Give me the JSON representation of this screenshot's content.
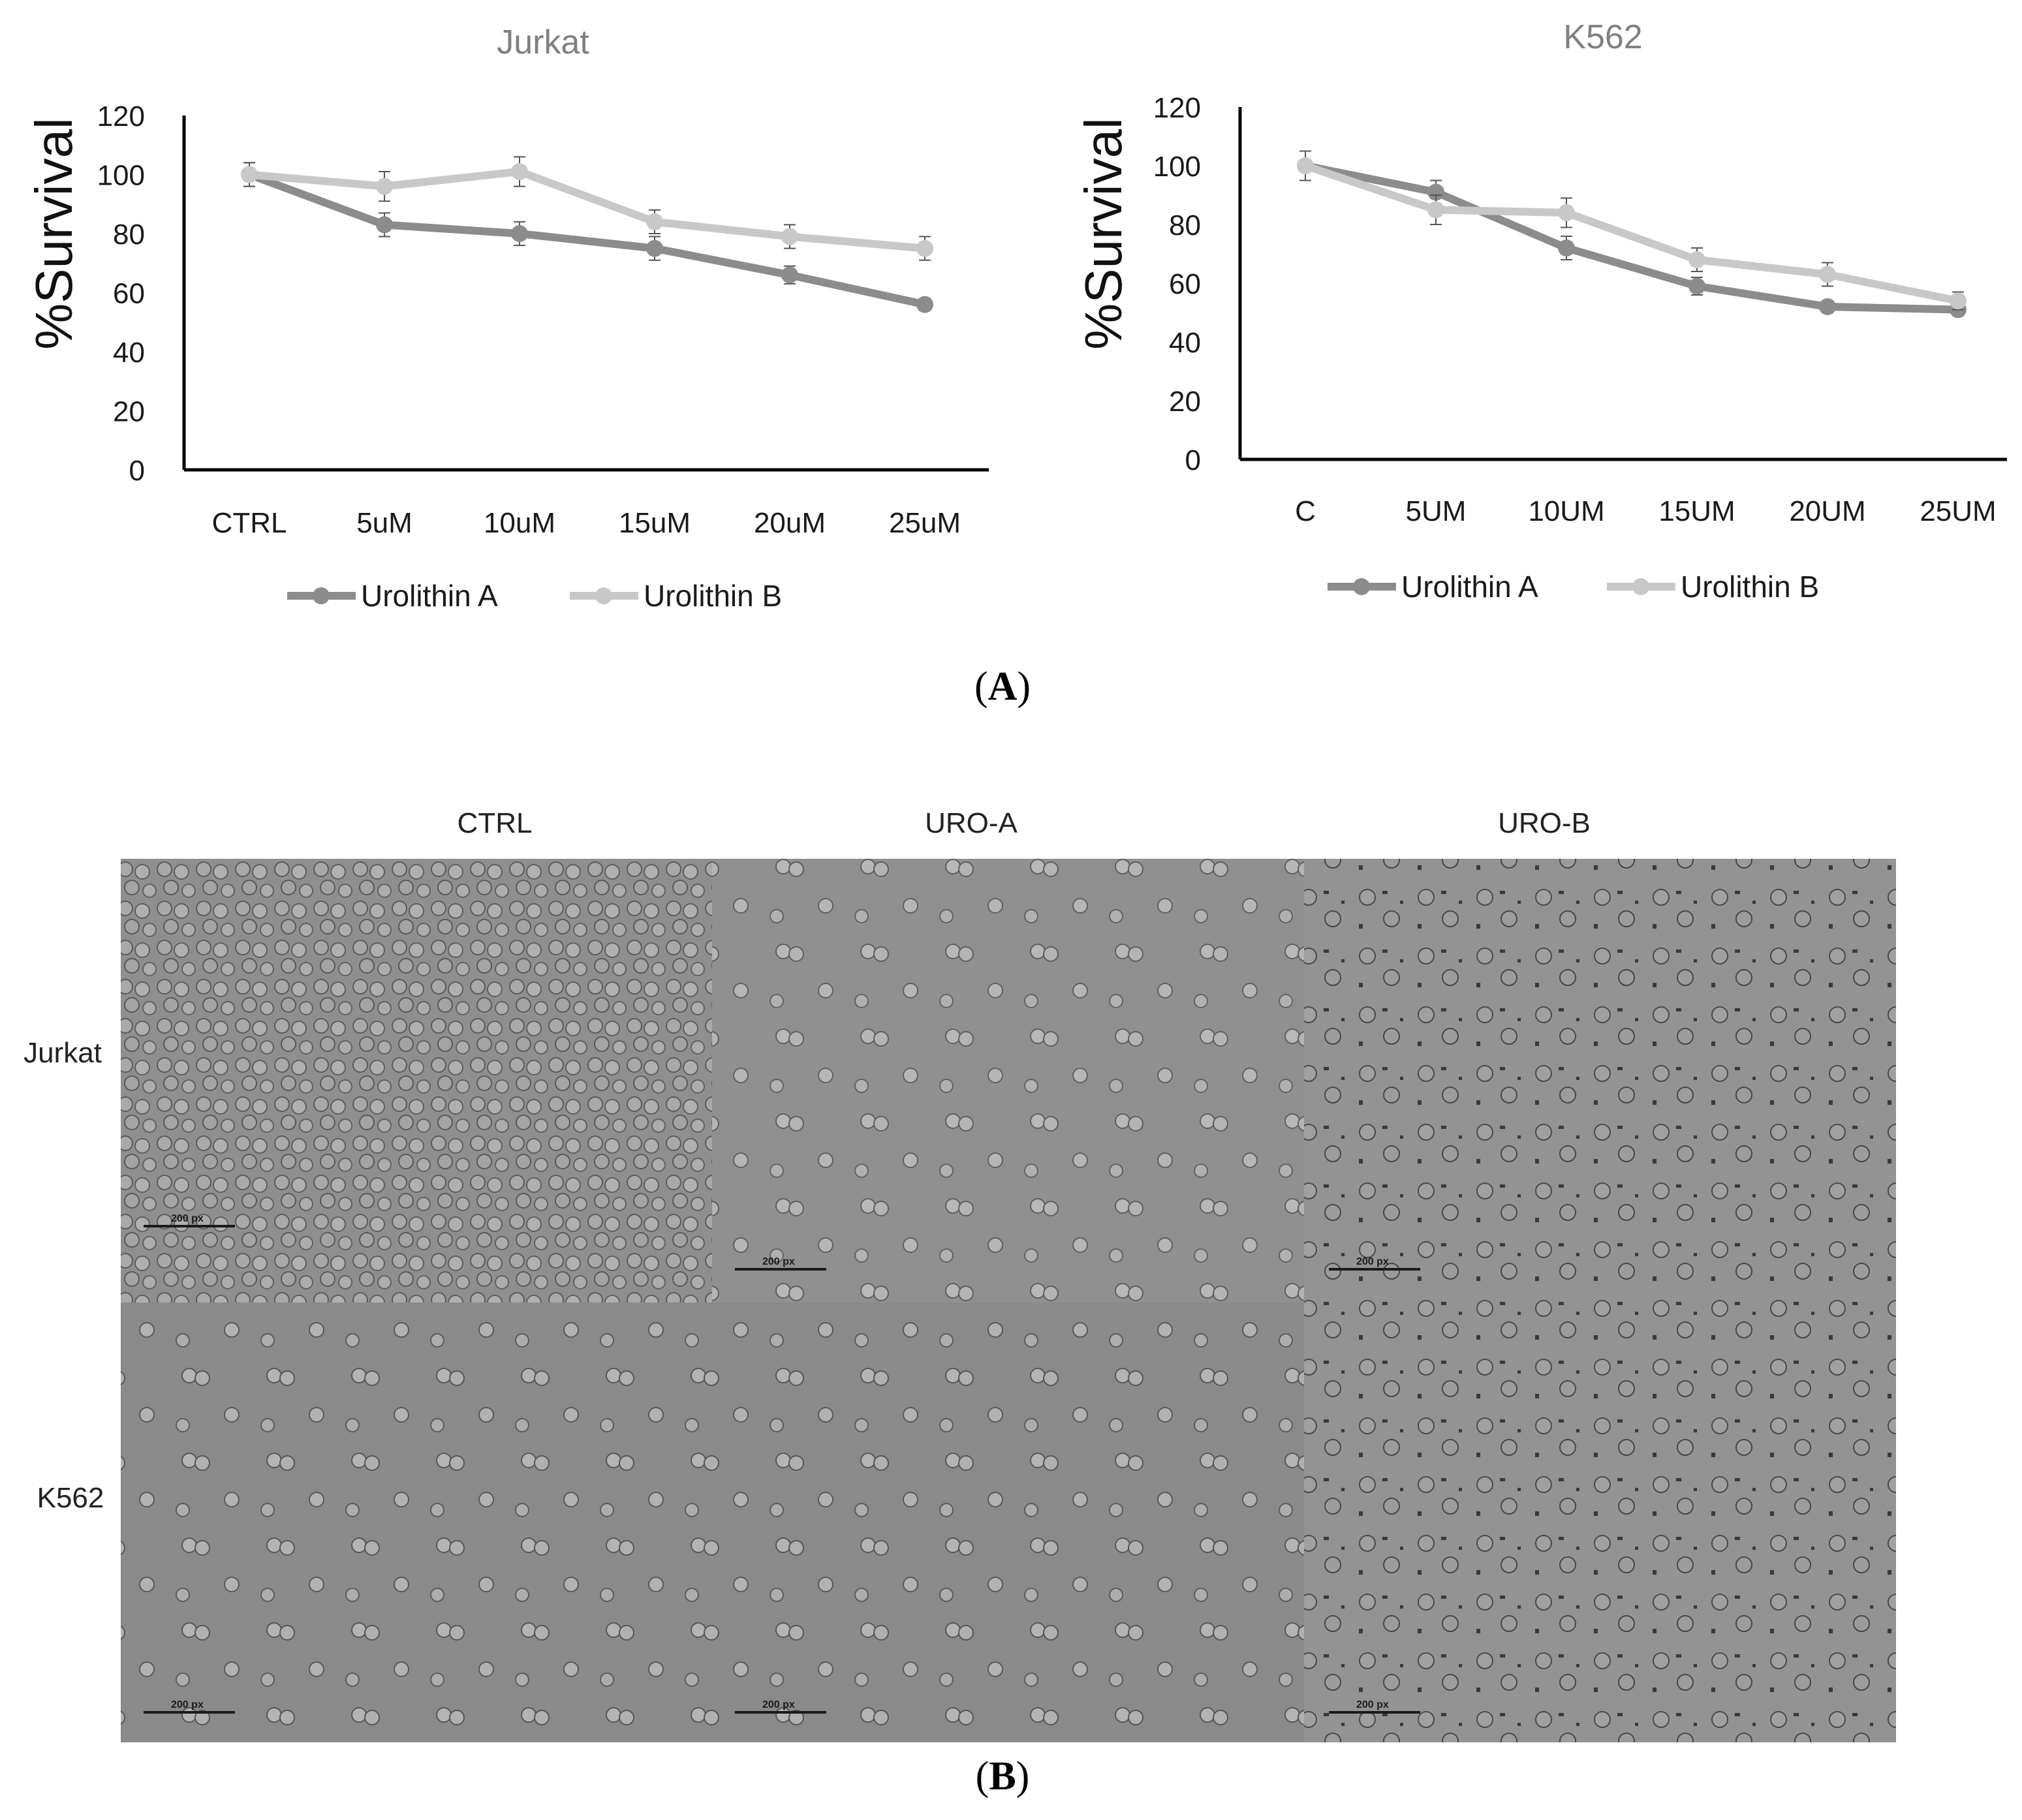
{
  "panel_labels": {
    "a": "A",
    "b": "B"
  },
  "chart_data": [
    {
      "type": "line",
      "title": "Jurkat",
      "ylabel": "%Survival",
      "xlabel": "",
      "categories": [
        "CTRL",
        "5uM",
        "10uM",
        "15uM",
        "20uM",
        "25uM"
      ],
      "ylim": [
        0,
        120
      ],
      "yticks": [
        0,
        20,
        40,
        60,
        80,
        100,
        120
      ],
      "grid": false,
      "legend": "bottom",
      "series": [
        {
          "name": "Urolithin A",
          "color": "#8c8c8c",
          "values": [
            100,
            83,
            80,
            75,
            66,
            56
          ],
          "errors": [
            4,
            4,
            4,
            4,
            3,
            2
          ]
        },
        {
          "name": "Urolithin B",
          "color": "#c8c8c8",
          "values": [
            100,
            96,
            101,
            84,
            79,
            75
          ],
          "errors": [
            4,
            5,
            5,
            4,
            4,
            4
          ]
        }
      ]
    },
    {
      "type": "line",
      "title": "K562",
      "ylabel": "%Survival",
      "xlabel": "",
      "categories": [
        "C",
        "5UM",
        "10UM",
        "15UM",
        "20UM",
        "25UM"
      ],
      "ylim": [
        0,
        120
      ],
      "yticks": [
        0,
        20,
        40,
        60,
        80,
        100,
        120
      ],
      "grid": false,
      "legend": "bottom",
      "series": [
        {
          "name": "Urolithin A",
          "color": "#8c8c8c",
          "values": [
            100,
            91,
            72,
            59,
            52,
            51
          ],
          "errors": [
            5,
            4,
            4,
            3,
            2,
            2
          ]
        },
        {
          "name": "Urolithin B",
          "color": "#c8c8c8",
          "values": [
            100,
            85,
            84,
            68,
            63,
            54
          ],
          "errors": [
            5,
            5,
            5,
            4,
            4,
            3
          ]
        }
      ]
    }
  ],
  "micrographs": {
    "columns": [
      "CTRL",
      "URO-A",
      "URO-B"
    ],
    "rows": [
      "Jurkat",
      "K562"
    ],
    "scale_bar_label": "200 px"
  }
}
